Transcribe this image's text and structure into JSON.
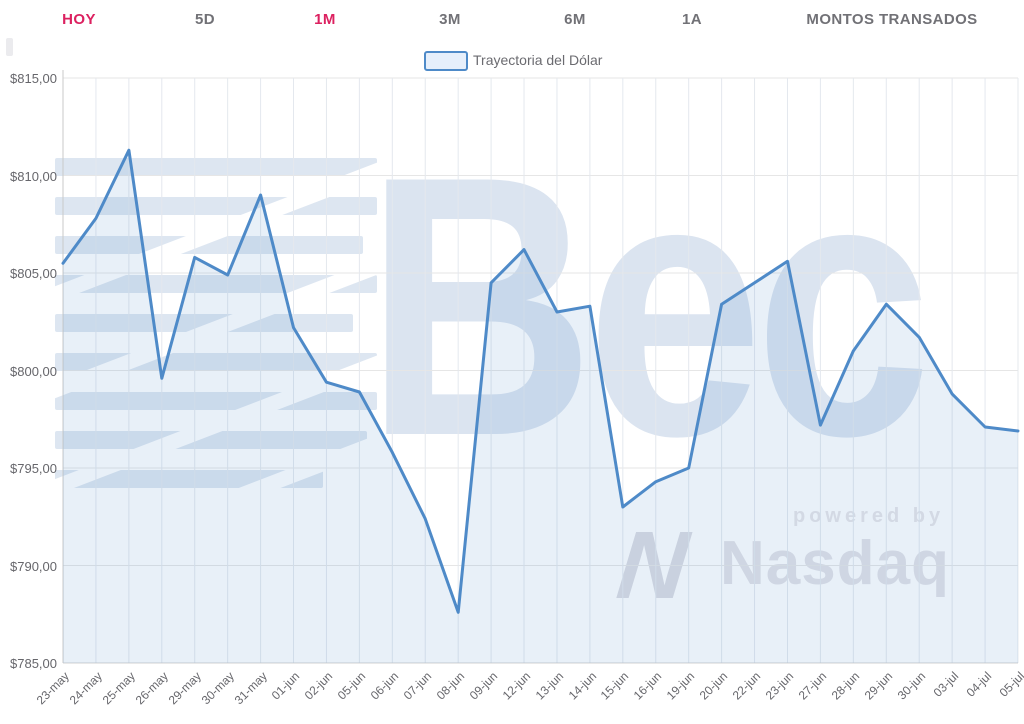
{
  "tabs": [
    {
      "label": "HOY",
      "highlighted": true
    },
    {
      "label": "5D",
      "highlighted": false
    },
    {
      "label": "1M",
      "highlighted": true
    },
    {
      "label": "3M",
      "highlighted": false
    },
    {
      "label": "6M",
      "highlighted": false
    },
    {
      "label": "1A",
      "highlighted": false
    },
    {
      "label": "MONTOS TRANSADOS",
      "highlighted": false
    }
  ],
  "legend": {
    "label": "Trayectoria del Dólar"
  },
  "watermark": {
    "brand": "Bec",
    "powered_by": "powered by",
    "provider": "Nasdaq",
    "provider_logo": "nasdaq-n-ribbon"
  },
  "colors": {
    "accent_pink": "#dc2160",
    "tab_inactive": "#717176",
    "line_blue": "#4e8ac8",
    "area_fill": "rgba(78,138,200,0.13)",
    "grid": "#e6e6e6",
    "axis_line": "#c9c9c9",
    "axis_label": "#66666b",
    "watermark_blue": "#dbe4f0",
    "watermark_gray": "#e3e2e7"
  },
  "chart_data": {
    "type": "area",
    "title": "",
    "xlabel": "",
    "ylabel": "",
    "legend_entries": [
      "Trayectoria del Dólar"
    ],
    "legend_position": "top-center",
    "grid": true,
    "ylim": [
      785,
      815
    ],
    "y_tick_values": [
      815,
      810,
      805,
      800,
      795,
      790,
      785
    ],
    "y_tick_labels": [
      "$815,00",
      "$810,00",
      "$805,00",
      "$800,00",
      "$795,00",
      "$790,00",
      "$785,00"
    ],
    "categories": [
      "23-may",
      "24-may",
      "25-may",
      "26-may",
      "29-may",
      "30-may",
      "31-may",
      "01-jun",
      "02-jun",
      "05-jun",
      "06-jun",
      "07-jun",
      "08-jun",
      "09-jun",
      "12-jun",
      "13-jun",
      "14-jun",
      "15-jun",
      "16-jun",
      "19-jun",
      "20-jun",
      "22-jun",
      "23-jun",
      "27-jun",
      "28-jun",
      "29-jun",
      "30-jun",
      "03-jul",
      "04-jul",
      "05-jul"
    ],
    "values": [
      805.5,
      807.8,
      811.3,
      799.6,
      805.8,
      804.9,
      809.0,
      802.2,
      799.4,
      798.9,
      795.8,
      792.4,
      787.6,
      804.5,
      806.2,
      803.0,
      803.3,
      793.0,
      794.3,
      795.0,
      803.4,
      804.5,
      805.6,
      797.2,
      801.0,
      803.4,
      801.7,
      798.8,
      797.1,
      796.9
    ]
  }
}
